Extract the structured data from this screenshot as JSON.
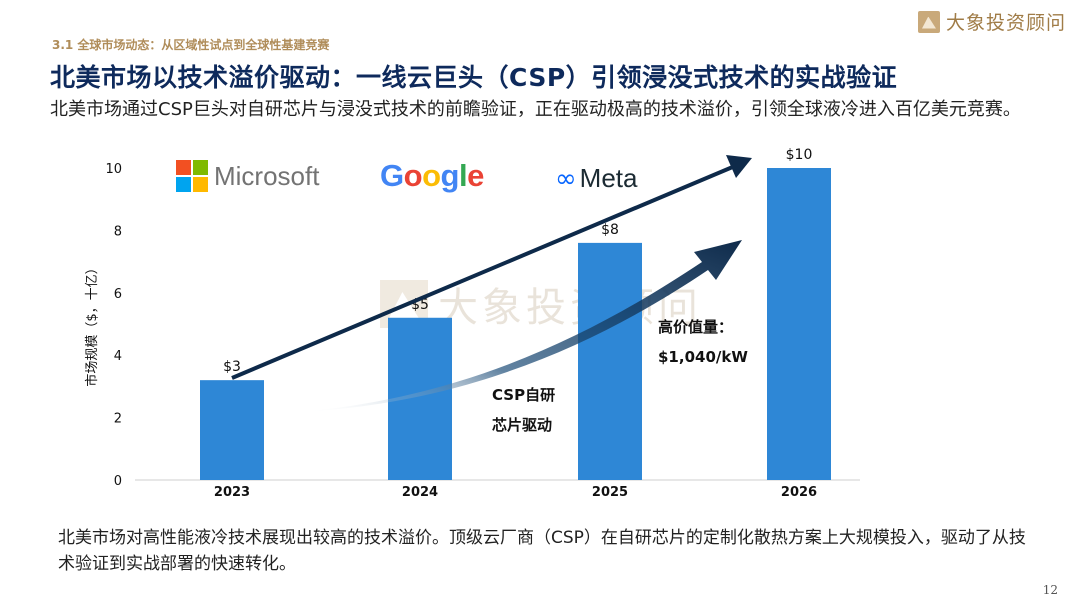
{
  "logo": {
    "text": "大象投资顾问"
  },
  "watermark": {
    "text": "大象投资顾问"
  },
  "header": {
    "section": "3.1 全球市场动态：从区域性试点到全球性基建竞赛",
    "title": "北美市场以技术溢价驱动：一线云巨头（CSP）引领浸没式技术的实战验证",
    "subtitle": "北美市场通过CSP巨头对自研芯片与浸没式技术的前瞻验证，正在驱动极高的技术溢价，引领全球液冷进入百亿美元竞赛。"
  },
  "brands": {
    "microsoft": "Microsoft",
    "google_letters": [
      "G",
      "o",
      "o",
      "g",
      "l",
      "e"
    ],
    "meta_icon": "∞",
    "meta": "Meta"
  },
  "colors": {
    "bar": "#2e87d6",
    "arrow": "#0e2a4a",
    "google": [
      "#4285F4",
      "#EA4335",
      "#FBBC05",
      "#4285F4",
      "#34A853",
      "#EA4335"
    ],
    "microsoft": [
      "#F25022",
      "#7FBA00",
      "#00A4EF",
      "#FFB900"
    ]
  },
  "annotations": {
    "premium_label": "高价值量：",
    "premium_value": "$1,040/kW",
    "csp_line1": "CSP自研",
    "csp_line2": "芯片驱动"
  },
  "chart_data": {
    "type": "bar",
    "categories": [
      "2023",
      "2024",
      "2025",
      "2026"
    ],
    "values": [
      3.2,
      5.2,
      7.6,
      10
    ],
    "data_labels": [
      "$3",
      "$5",
      "$8",
      "$10"
    ],
    "ylabel": "市场规模（$，十亿）",
    "ylim": [
      0,
      10
    ],
    "yticks": [
      0,
      2,
      4,
      6,
      8,
      10
    ],
    "grid": false
  },
  "footer": {
    "text": "北美市场对高性能液冷技术展现出较高的技术溢价。顶级云厂商（CSP）在自研芯片的定制化散热方案上大规模投入，驱动了从技术验证到实战部署的快速转化。"
  },
  "page_number": "12"
}
